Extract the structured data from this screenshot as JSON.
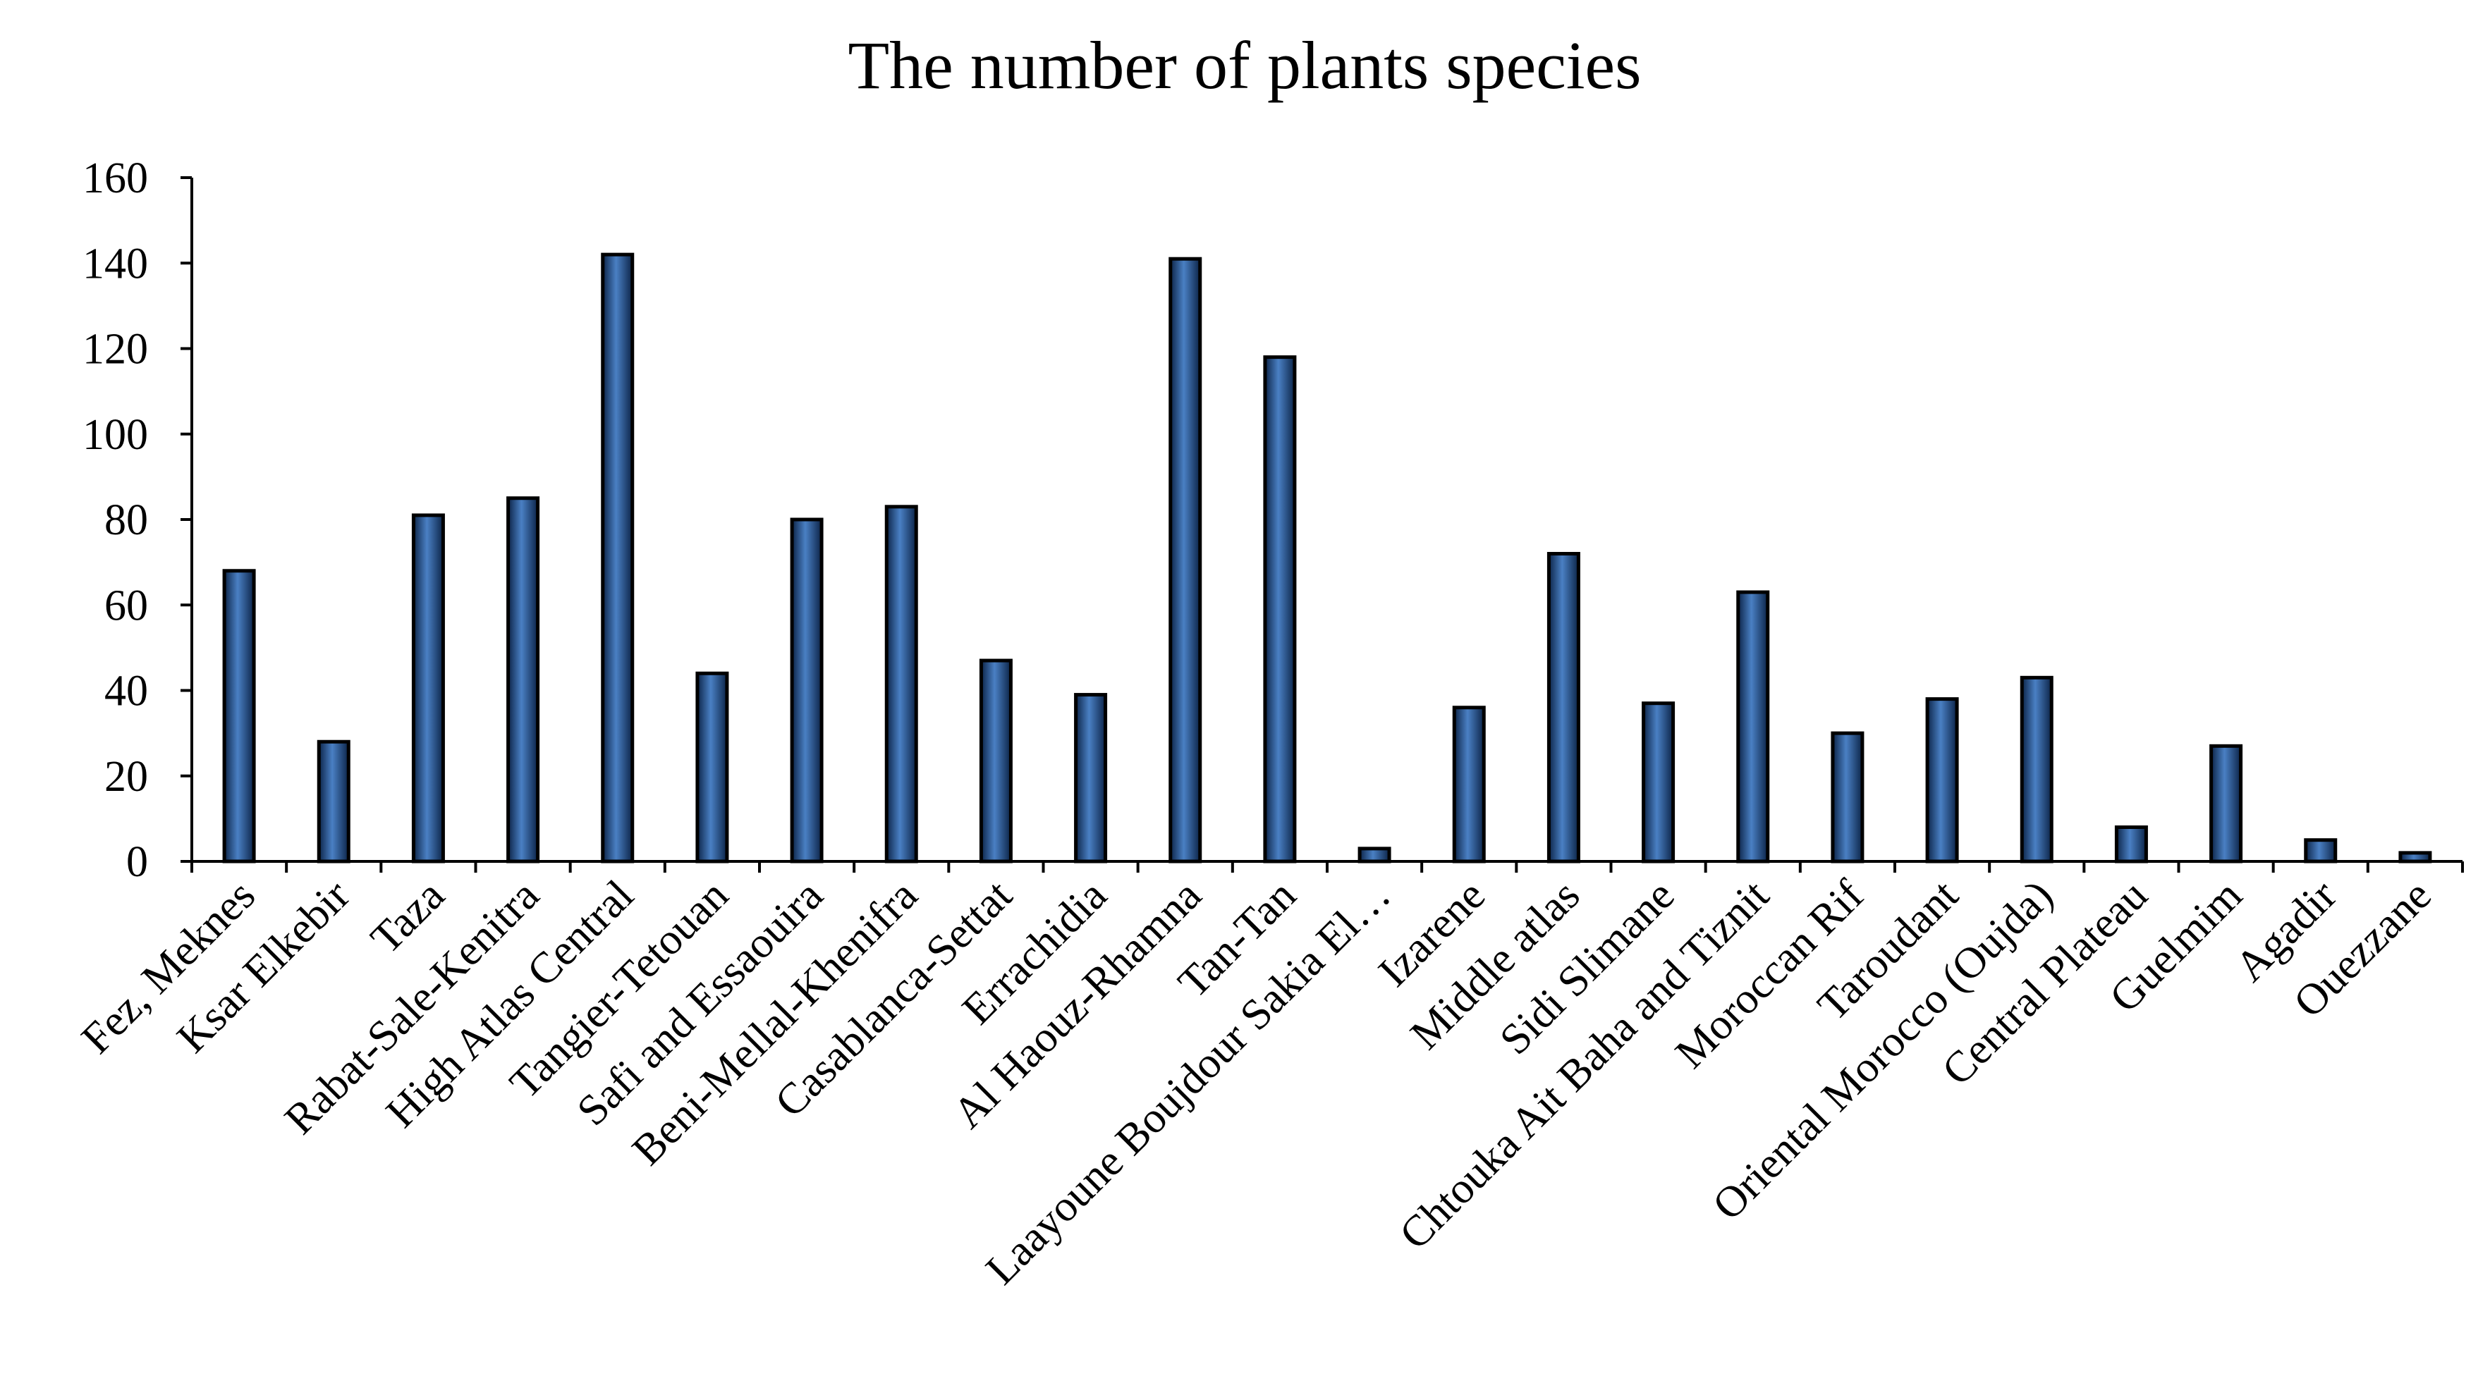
{
  "chart_data": {
    "type": "bar",
    "title": "The number of plants species",
    "xlabel": "",
    "ylabel": "",
    "ylim": [
      0,
      160
    ],
    "yticks": [
      0,
      20,
      40,
      60,
      80,
      100,
      120,
      140,
      160
    ],
    "grid": false,
    "legend": "none",
    "bar_color": "#1f4e8c",
    "bar_highlight": "#4a80c4",
    "bar_shadow": "#0c2448",
    "categories": [
      "Fez, Meknes",
      "Ksar Elkebir",
      "Taza",
      "Rabat-Sale-Kenitra",
      "High Atlas Central",
      "Tangier-Tetouan",
      "Safi and Essaouira",
      "Beni-Mellal-Khenifra",
      "Casablanca-Settat",
      "Errachidia",
      "Al Haouz-Rhamna",
      "Tan-Tan",
      "Laayoune Boujdour Sakia El…",
      "Izarene",
      "Middle atlas",
      "Sidi Slimane",
      "Chtouka Ait Baha and Tiznit",
      "Moroccan Rif",
      "Taroudant",
      "Oriental Morocco (Oujda)",
      "Central Plateau",
      "Guelmim",
      "Agadir",
      "Ouezzane"
    ],
    "values": [
      68,
      28,
      81,
      85,
      142,
      44,
      80,
      83,
      47,
      39,
      141,
      118,
      3,
      36,
      72,
      37,
      63,
      30,
      38,
      43,
      8,
      27,
      5,
      2
    ]
  }
}
